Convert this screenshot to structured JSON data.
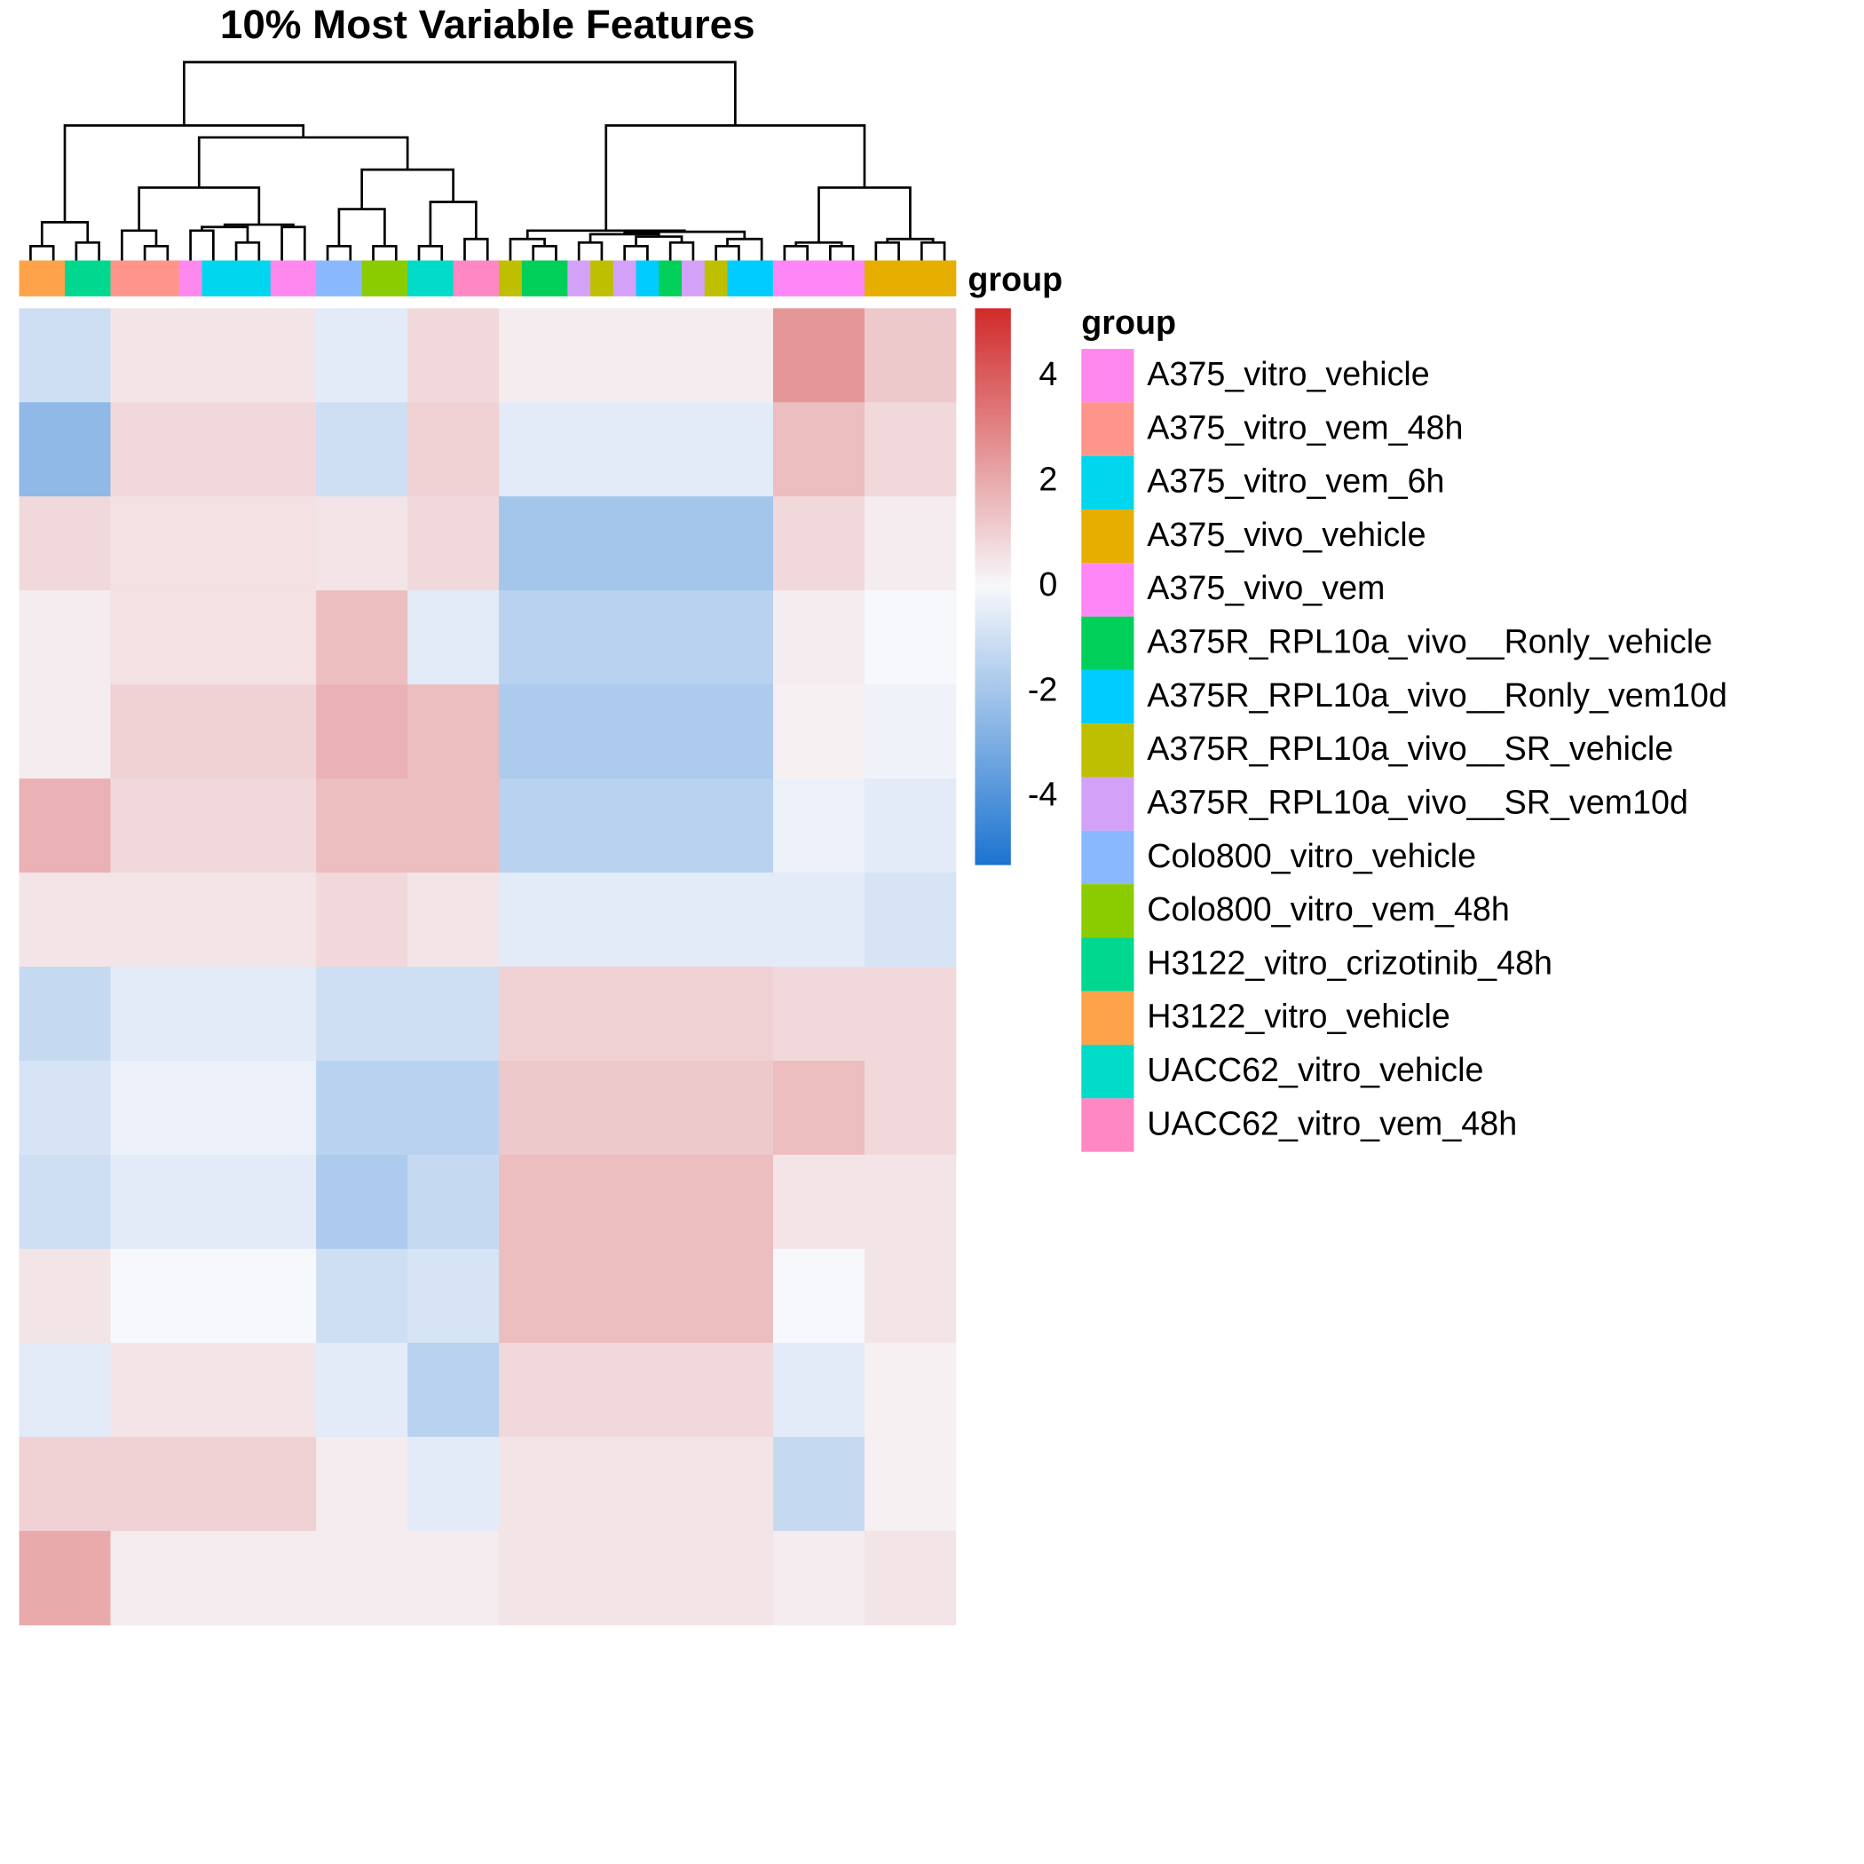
{
  "title": "10% Most Variable Features",
  "colorbar": {
    "title": "group",
    "lim": [
      -5.3,
      5.3
    ],
    "ticks": [
      4,
      2,
      0,
      -2,
      -4
    ],
    "colors": [
      "#1C73D0",
      "#F7F8FB",
      "#D12A2A"
    ]
  },
  "legend": {
    "title": "group",
    "entries": [
      {
        "name": "A375_vitro_vehicle",
        "color": "#FF88EE"
      },
      {
        "name": "A375_vitro_vem_48h",
        "color": "#FF958A"
      },
      {
        "name": "A375_vitro_vem_6h",
        "color": "#00D7EF"
      },
      {
        "name": "A375_vivo_vehicle",
        "color": "#E6AF00"
      },
      {
        "name": "A375_vivo_vem",
        "color": "#FF86F6"
      },
      {
        "name": "A375R_RPL10a_vivo__Ronly_vehicle",
        "color": "#00CF5A"
      },
      {
        "name": "A375R_RPL10a_vivo__Ronly_vem10d",
        "color": "#00CCFF"
      },
      {
        "name": "A375R_RPL10a_vivo__SR_vehicle",
        "color": "#BDBF00"
      },
      {
        "name": "A375R_RPL10a_vivo__SR_vem10d",
        "color": "#D3A2F8"
      },
      {
        "name": "Colo800_vitro_vehicle",
        "color": "#8AB8FF"
      },
      {
        "name": "Colo800_vitro_vem_48h",
        "color": "#8ACC00"
      },
      {
        "name": "H3122_vitro_crizotinib_48h",
        "color": "#00D890"
      },
      {
        "name": "H3122_vitro_vehicle",
        "color": "#FFA34A"
      },
      {
        "name": "UACC62_vitro_vehicle",
        "color": "#00DCC8"
      },
      {
        "name": "UACC62_vitro_vem_48h",
        "color": "#FF88C4"
      }
    ]
  },
  "annotation": {
    "column_groups": [
      "H3122_vitro_vehicle",
      "H3122_vitro_vehicle",
      "H3122_vitro_crizotinib_48h",
      "H3122_vitro_crizotinib_48h",
      "A375_vitro_vem_48h",
      "A375_vitro_vem_48h",
      "A375_vitro_vem_48h",
      "A375_vitro_vehicle",
      "A375_vitro_vem_6h",
      "A375_vitro_vem_6h",
      "A375_vitro_vem_6h",
      "A375_vitro_vehicle",
      "A375_vitro_vehicle",
      "Colo800_vitro_vehicle",
      "Colo800_vitro_vehicle",
      "Colo800_vitro_vem_48h",
      "Colo800_vitro_vem_48h",
      "UACC62_vitro_vehicle",
      "UACC62_vitro_vehicle",
      "UACC62_vitro_vem_48h",
      "UACC62_vitro_vem_48h",
      "A375R_RPL10a_vivo__SR_vehicle",
      "A375R_RPL10a_vivo__Ronly_vehicle",
      "A375R_RPL10a_vivo__Ronly_vehicle",
      "A375R_RPL10a_vivo__SR_vem10d",
      "A375R_RPL10a_vivo__SR_vehicle",
      "A375R_RPL10a_vivo__SR_vem10d",
      "A375R_RPL10a_vivo__Ronly_vem10d",
      "A375R_RPL10a_vivo__Ronly_vehicle",
      "A375R_RPL10a_vivo__SR_vem10d",
      "A375R_RPL10a_vivo__SR_vehicle",
      "A375R_RPL10a_vivo__Ronly_vem10d",
      "A375R_RPL10a_vivo__Ronly_vem10d",
      "A375_vivo_vem",
      "A375_vivo_vem",
      "A375_vivo_vem",
      "A375_vivo_vem",
      "A375_vivo_vehicle",
      "A375_vivo_vehicle",
      "A375_vivo_vehicle",
      "A375_vivo_vehicle"
    ]
  },
  "heatmap": {
    "values": [
      [
        -1,
        0.5,
        -0.5,
        0.8,
        0.3,
        2.5,
        1.2
      ],
      [
        -2.5,
        0.8,
        -1,
        1,
        -0.5,
        1.5,
        0.8
      ],
      [
        0.8,
        0.6,
        0.5,
        0.8,
        -2,
        0.8,
        0.3
      ],
      [
        0.3,
        0.6,
        1.5,
        -0.5,
        -1.5,
        0.3,
        0
      ],
      [
        0.3,
        1,
        1.8,
        1.5,
        -1.8,
        0.2,
        -0.2
      ],
      [
        1.8,
        0.8,
        1.5,
        1.5,
        -1.5,
        -0.3,
        -0.5
      ],
      [
        0.5,
        0.5,
        0.8,
        0.5,
        -0.5,
        -0.5,
        -0.8
      ],
      [
        -1.2,
        -0.5,
        -1,
        -1,
        1,
        0.8,
        0.8
      ],
      [
        -0.8,
        -0.3,
        -1.5,
        -1.5,
        1.2,
        1.5,
        0.8
      ],
      [
        -1,
        -0.5,
        -1.8,
        -1.2,
        1.5,
        0.5,
        0.5
      ],
      [
        0.5,
        0,
        -1,
        -0.8,
        1.5,
        0,
        0.5
      ],
      [
        -0.5,
        0.5,
        -0.5,
        -1.5,
        0.8,
        -0.5,
        0.2
      ],
      [
        1,
        1,
        0.3,
        -0.5,
        0.5,
        -1.2,
        0.2
      ],
      [
        2,
        0.3,
        0.3,
        0.3,
        0.5,
        0.3,
        0.5
      ]
    ]
  }
}
